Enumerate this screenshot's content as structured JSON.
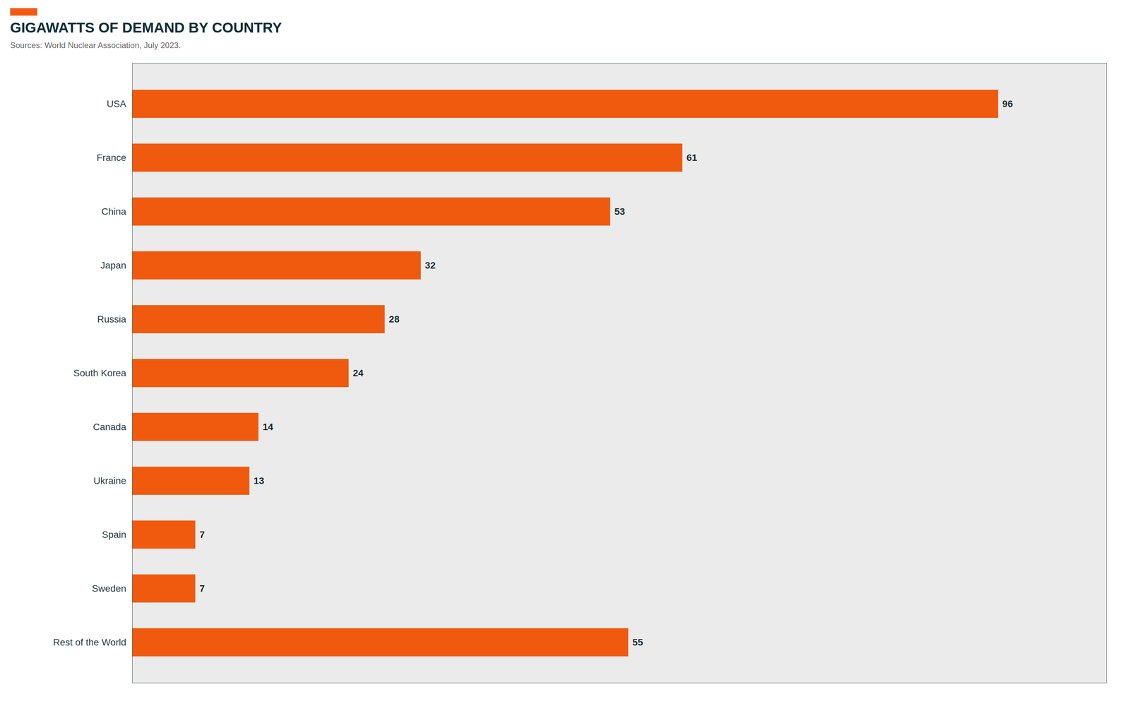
{
  "chart_data": {
    "type": "bar",
    "title": "GIGAWATTS OF DEMAND BY COUNTRY",
    "subtitle": "Sources: World Nuclear Association, July 2023.",
    "categories": [
      "USA",
      "France",
      "China",
      "Japan",
      "Russia",
      "South Korea",
      "Canada",
      "Ukraine",
      "Spain",
      "Sweden",
      "Rest of the World"
    ],
    "values": [
      96,
      61,
      53,
      32,
      28,
      24,
      14,
      13,
      7,
      7,
      55
    ],
    "color": "#F05A0E",
    "orientation": "horizontal",
    "xlim": [
      0,
      108
    ],
    "grid": false,
    "data_labels": true,
    "tick_labels": "y"
  }
}
